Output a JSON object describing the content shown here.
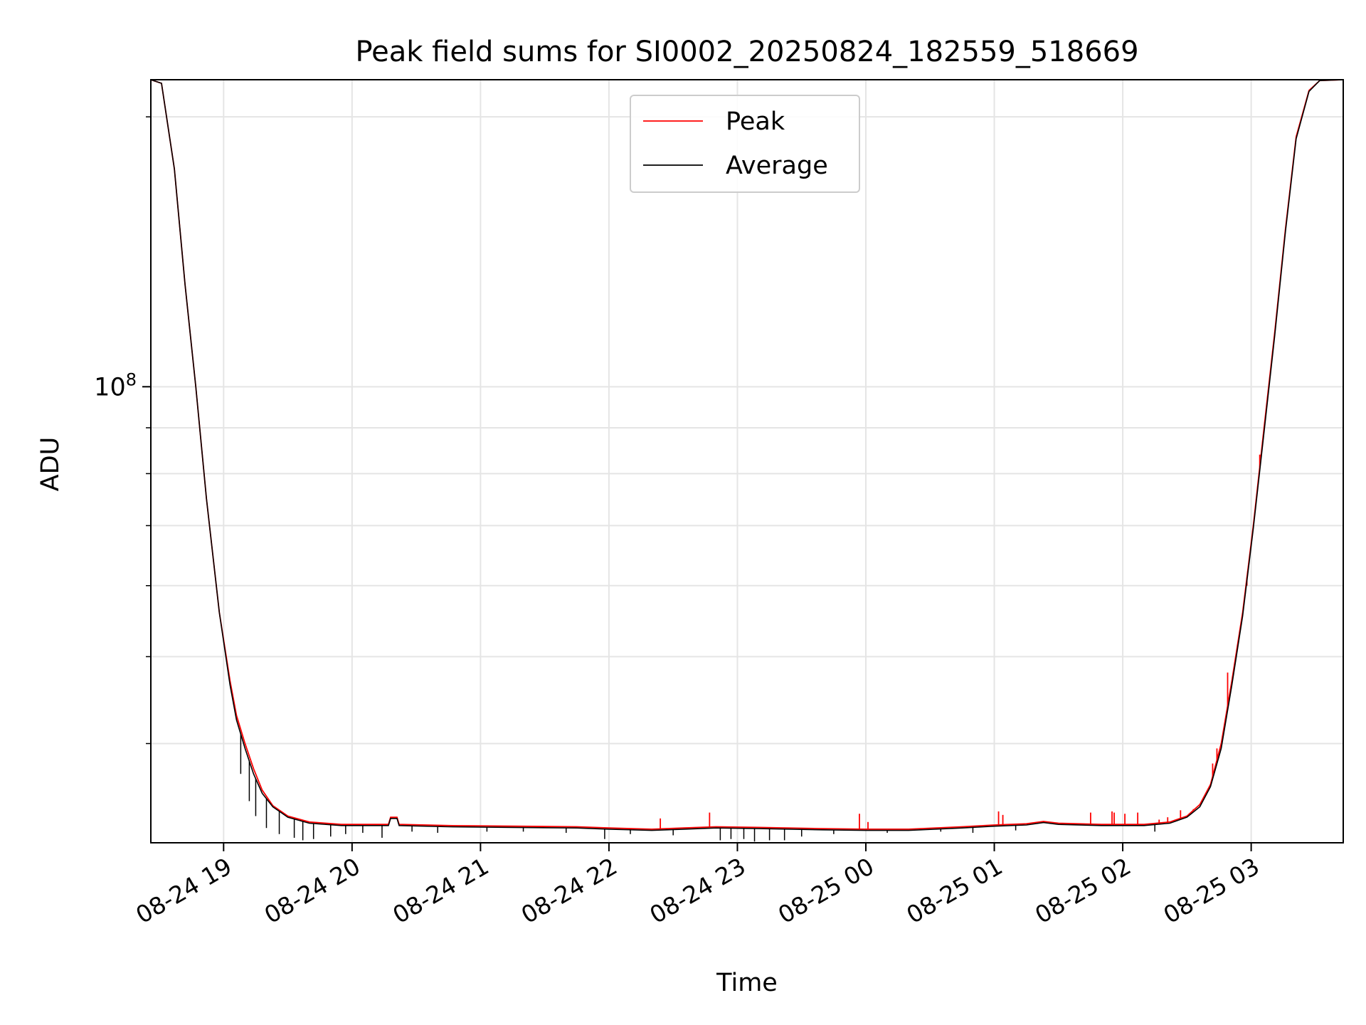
{
  "chart_data": {
    "type": "line",
    "title": "Peak field sums for SI0002_20250824_182559_518669",
    "xlabel": "Time",
    "ylabel": "ADU",
    "yscale": "log",
    "grid": true,
    "legend_position": "upper center",
    "xlim": [
      "2025-08-24 18:26",
      "2025-08-25 03:43"
    ],
    "ylim": [
      31000000,
      220000000
    ],
    "x_ticks": [
      {
        "t": "2025-08-24 19:00",
        "label": "08-24 19"
      },
      {
        "t": "2025-08-24 20:00",
        "label": "08-24 20"
      },
      {
        "t": "2025-08-24 21:00",
        "label": "08-24 21"
      },
      {
        "t": "2025-08-24 22:00",
        "label": "08-24 22"
      },
      {
        "t": "2025-08-24 23:00",
        "label": "08-24 23"
      },
      {
        "t": "2025-08-25 00:00",
        "label": "08-25 00"
      },
      {
        "t": "2025-08-25 01:00",
        "label": "08-25 01"
      },
      {
        "t": "2025-08-25 02:00",
        "label": "08-25 02"
      },
      {
        "t": "2025-08-25 03:00",
        "label": "08-25 03"
      }
    ],
    "y_major_ticks": [
      {
        "v": 100000000,
        "label": "10",
        "exp": "8"
      }
    ],
    "y_minor_ticks": [
      40000000,
      50000000,
      60000000,
      70000000,
      80000000,
      90000000,
      200000000
    ],
    "series": [
      {
        "name": "Peak",
        "color": "#ff0000",
        "points": [
          [
            "2025-08-24 18:26",
            220000000
          ],
          [
            "2025-08-24 18:31",
            218000000
          ],
          [
            "2025-08-24 18:37",
            175000000
          ],
          [
            "2025-08-24 18:42",
            130000000
          ],
          [
            "2025-08-24 18:47",
            100000000
          ],
          [
            "2025-08-24 18:52",
            75000000
          ],
          [
            "2025-08-24 18:58",
            56000000
          ],
          [
            "2025-08-24 19:03",
            47000000
          ],
          [
            "2025-08-24 19:06",
            43000000
          ],
          [
            "2025-08-24 19:10",
            40000000
          ],
          [
            "2025-08-24 19:14",
            37500000
          ],
          [
            "2025-08-24 19:18",
            35500000
          ],
          [
            "2025-08-24 19:23",
            34100000
          ],
          [
            "2025-08-24 19:30",
            33200000
          ],
          [
            "2025-08-24 19:40",
            32700000
          ],
          [
            "2025-08-24 19:55",
            32500000
          ],
          [
            "2025-08-24 20:17",
            32500000
          ],
          [
            "2025-08-24 20:18",
            33100000
          ],
          [
            "2025-08-24 20:21",
            33100000
          ],
          [
            "2025-08-24 20:22",
            32500000
          ],
          [
            "2025-08-24 20:45",
            32400000
          ],
          [
            "2025-08-24 21:15",
            32350000
          ],
          [
            "2025-08-24 21:45",
            32300000
          ],
          [
            "2025-08-24 22:00",
            32200000
          ],
          [
            "2025-08-24 22:20",
            32100000
          ],
          [
            "2025-08-24 22:35",
            32200000
          ],
          [
            "2025-08-24 22:50",
            32300000
          ],
          [
            "2025-08-24 23:10",
            32250000
          ],
          [
            "2025-08-24 23:40",
            32150000
          ],
          [
            "2025-08-25 00:00",
            32100000
          ],
          [
            "2025-08-25 00:20",
            32100000
          ],
          [
            "2025-08-25 00:45",
            32300000
          ],
          [
            "2025-08-25 01:00",
            32450000
          ],
          [
            "2025-08-25 01:15",
            32550000
          ],
          [
            "2025-08-25 01:23",
            32750000
          ],
          [
            "2025-08-25 01:30",
            32600000
          ],
          [
            "2025-08-25 01:50",
            32500000
          ],
          [
            "2025-08-25 02:10",
            32500000
          ],
          [
            "2025-08-25 02:22",
            32700000
          ],
          [
            "2025-08-25 02:30",
            33200000
          ],
          [
            "2025-08-25 02:36",
            34200000
          ],
          [
            "2025-08-25 02:41",
            36000000
          ],
          [
            "2025-08-25 02:46",
            40000000
          ],
          [
            "2025-08-25 02:51",
            47000000
          ],
          [
            "2025-08-25 02:56",
            56000000
          ],
          [
            "2025-08-25 03:01",
            70000000
          ],
          [
            "2025-08-25 03:06",
            90000000
          ],
          [
            "2025-08-25 03:11",
            115000000
          ],
          [
            "2025-08-25 03:16",
            150000000
          ],
          [
            "2025-08-25 03:21",
            190000000
          ],
          [
            "2025-08-25 03:27",
            214000000
          ],
          [
            "2025-08-25 03:32",
            219500000
          ],
          [
            "2025-08-25 03:43",
            220000000
          ]
        ],
        "spikes": [
          [
            "2025-08-24 22:24",
            33000000
          ],
          [
            "2025-08-24 22:47",
            33500000
          ],
          [
            "2025-08-24 23:57",
            33400000
          ],
          [
            "2025-08-25 00:01",
            32700000
          ],
          [
            "2025-08-25 01:02",
            33600000
          ],
          [
            "2025-08-25 01:04",
            33300000
          ],
          [
            "2025-08-25 01:45",
            33500000
          ],
          [
            "2025-08-25 01:55",
            33600000
          ],
          [
            "2025-08-25 01:56",
            33500000
          ],
          [
            "2025-08-25 02:01",
            33400000
          ],
          [
            "2025-08-25 02:07",
            33500000
          ],
          [
            "2025-08-25 02:17",
            32900000
          ],
          [
            "2025-08-25 02:21",
            33100000
          ],
          [
            "2025-08-25 02:27",
            33700000
          ],
          [
            "2025-08-25 02:33",
            33800000
          ],
          [
            "2025-08-25 02:42",
            38000000
          ],
          [
            "2025-08-25 02:44",
            39500000
          ],
          [
            "2025-08-25 02:49",
            48000000
          ],
          [
            "2025-08-25 02:58",
            60000000
          ],
          [
            "2025-08-25 03:04",
            84000000
          ]
        ]
      },
      {
        "name": "Average",
        "color": "#000000",
        "points": [
          [
            "2025-08-24 18:26",
            220000000
          ],
          [
            "2025-08-24 18:31",
            218000000
          ],
          [
            "2025-08-24 18:37",
            175000000
          ],
          [
            "2025-08-24 18:42",
            130000000
          ],
          [
            "2025-08-24 18:47",
            100000000
          ],
          [
            "2025-08-24 18:52",
            75000000
          ],
          [
            "2025-08-24 18:58",
            56000000
          ],
          [
            "2025-08-24 19:03",
            46500000
          ],
          [
            "2025-08-24 19:06",
            42500000
          ],
          [
            "2025-08-24 19:10",
            39500000
          ],
          [
            "2025-08-24 19:14",
            37000000
          ],
          [
            "2025-08-24 19:18",
            35200000
          ],
          [
            "2025-08-24 19:23",
            34000000
          ],
          [
            "2025-08-24 19:30",
            33100000
          ],
          [
            "2025-08-24 19:40",
            32600000
          ],
          [
            "2025-08-24 19:55",
            32400000
          ],
          [
            "2025-08-24 20:17",
            32400000
          ],
          [
            "2025-08-24 20:18",
            33000000
          ],
          [
            "2025-08-24 20:21",
            33000000
          ],
          [
            "2025-08-24 20:22",
            32400000
          ],
          [
            "2025-08-24 20:45",
            32300000
          ],
          [
            "2025-08-24 21:15",
            32250000
          ],
          [
            "2025-08-24 21:45",
            32200000
          ],
          [
            "2025-08-24 22:00",
            32100000
          ],
          [
            "2025-08-24 22:20",
            32000000
          ],
          [
            "2025-08-24 22:35",
            32100000
          ],
          [
            "2025-08-24 22:50",
            32200000
          ],
          [
            "2025-08-24 23:10",
            32150000
          ],
          [
            "2025-08-24 23:40",
            32050000
          ],
          [
            "2025-08-25 00:00",
            32000000
          ],
          [
            "2025-08-25 00:20",
            32000000
          ],
          [
            "2025-08-25 00:45",
            32200000
          ],
          [
            "2025-08-25 01:00",
            32350000
          ],
          [
            "2025-08-25 01:15",
            32450000
          ],
          [
            "2025-08-25 01:23",
            32650000
          ],
          [
            "2025-08-25 01:30",
            32500000
          ],
          [
            "2025-08-25 01:50",
            32400000
          ],
          [
            "2025-08-25 02:10",
            32400000
          ],
          [
            "2025-08-25 02:22",
            32600000
          ],
          [
            "2025-08-25 02:30",
            33100000
          ],
          [
            "2025-08-25 02:36",
            34000000
          ],
          [
            "2025-08-25 02:41",
            35800000
          ],
          [
            "2025-08-25 02:46",
            39500000
          ],
          [
            "2025-08-25 02:51",
            46500000
          ],
          [
            "2025-08-25 02:56",
            55500000
          ],
          [
            "2025-08-25 03:01",
            69500000
          ],
          [
            "2025-08-25 03:06",
            89000000
          ],
          [
            "2025-08-25 03:11",
            114000000
          ],
          [
            "2025-08-25 03:16",
            149000000
          ],
          [
            "2025-08-25 03:21",
            189000000
          ],
          [
            "2025-08-25 03:27",
            213500000
          ],
          [
            "2025-08-25 03:32",
            219500000
          ],
          [
            "2025-08-25 03:43",
            220000000
          ]
        ],
        "dips": [
          [
            "2025-08-24 19:08",
            37000000
          ],
          [
            "2025-08-24 19:12",
            34500000
          ],
          [
            "2025-08-24 19:15",
            33200000
          ],
          [
            "2025-08-24 19:20",
            32200000
          ],
          [
            "2025-08-24 19:26",
            31700000
          ],
          [
            "2025-08-24 19:33",
            31400000
          ],
          [
            "2025-08-24 19:37",
            31200000
          ],
          [
            "2025-08-24 19:42",
            31300000
          ],
          [
            "2025-08-24 19:50",
            31500000
          ],
          [
            "2025-08-24 19:57",
            31700000
          ],
          [
            "2025-08-24 20:05",
            31800000
          ],
          [
            "2025-08-24 20:14",
            31400000
          ],
          [
            "2025-08-24 20:28",
            31900000
          ],
          [
            "2025-08-24 20:40",
            31800000
          ],
          [
            "2025-08-24 21:03",
            31900000
          ],
          [
            "2025-08-24 21:20",
            31900000
          ],
          [
            "2025-08-24 21:40",
            31800000
          ],
          [
            "2025-08-24 21:58",
            31300000
          ],
          [
            "2025-08-24 22:10",
            31700000
          ],
          [
            "2025-08-24 22:30",
            31600000
          ],
          [
            "2025-08-24 22:52",
            31200000
          ],
          [
            "2025-08-24 22:57",
            31300000
          ],
          [
            "2025-08-24 23:03",
            31300000
          ],
          [
            "2025-08-24 23:08",
            31100000
          ],
          [
            "2025-08-24 23:15",
            31200000
          ],
          [
            "2025-08-24 23:22",
            31200000
          ],
          [
            "2025-08-24 23:30",
            31500000
          ],
          [
            "2025-08-24 23:45",
            31700000
          ],
          [
            "2025-08-25 00:10",
            31800000
          ],
          [
            "2025-08-25 00:35",
            31900000
          ],
          [
            "2025-08-25 00:50",
            31800000
          ],
          [
            "2025-08-25 01:10",
            32000000
          ],
          [
            "2025-08-25 02:15",
            31900000
          ]
        ]
      }
    ]
  }
}
